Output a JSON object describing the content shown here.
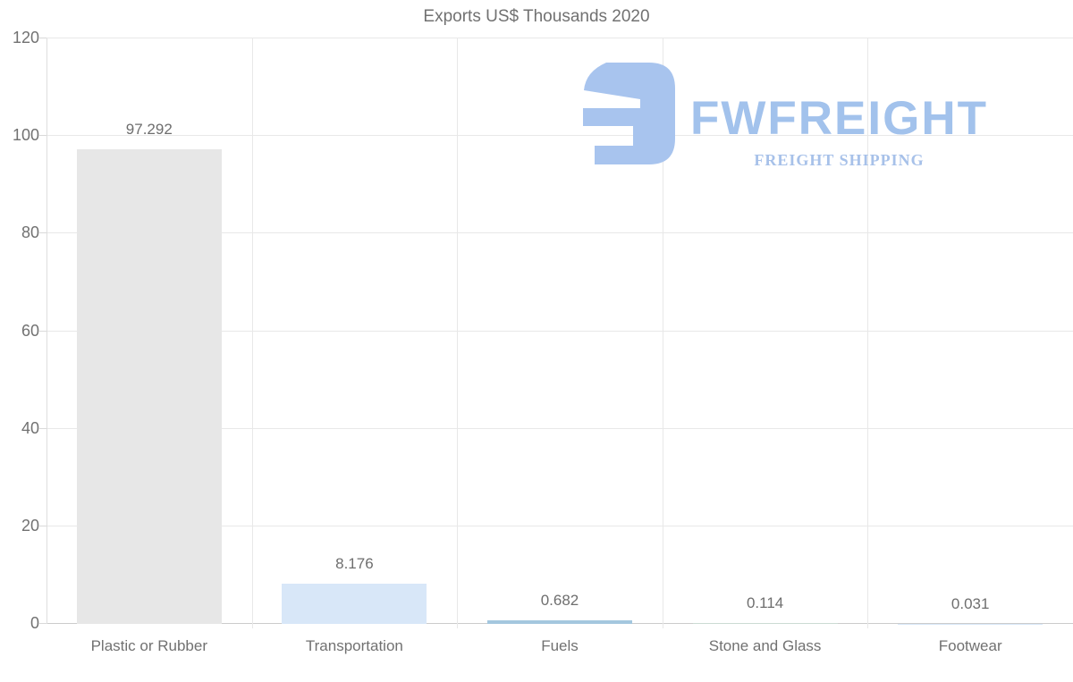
{
  "title": "Exports US$ Thousands 2020",
  "logo": {
    "brand": "FWFREIGHT",
    "tagline": "FREIGHT SHIPPING",
    "mark_color": "#a8c4ee",
    "brand_color": "#a2c2ec",
    "tagline_color": "#a7c1e9"
  },
  "chart_data": {
    "type": "bar",
    "title": "Exports US$ Thousands 2020",
    "categories": [
      "Plastic or Rubber",
      "Transportation",
      "Fuels",
      "Stone and Glass",
      "Footwear"
    ],
    "values": [
      97.292,
      8.176,
      0.682,
      0.114,
      0.031
    ],
    "value_labels": [
      "97.292",
      "8.176",
      "0.682",
      "0.114",
      "0.031"
    ],
    "bar_colors": [
      "#e7e7e7",
      "#d8e7f8",
      "#a4c7de",
      "#ccdbd3",
      "#d8e7f8"
    ],
    "xlabel": "",
    "ylabel": "",
    "ylim": [
      0,
      120
    ],
    "yticks": [
      0,
      20,
      40,
      60,
      80,
      100,
      120
    ],
    "grid": true,
    "legend": "none",
    "background": "#ffffff",
    "text_color": "#717171",
    "grid_color": "#e8e8e8",
    "axis_color": "#cccccc"
  }
}
